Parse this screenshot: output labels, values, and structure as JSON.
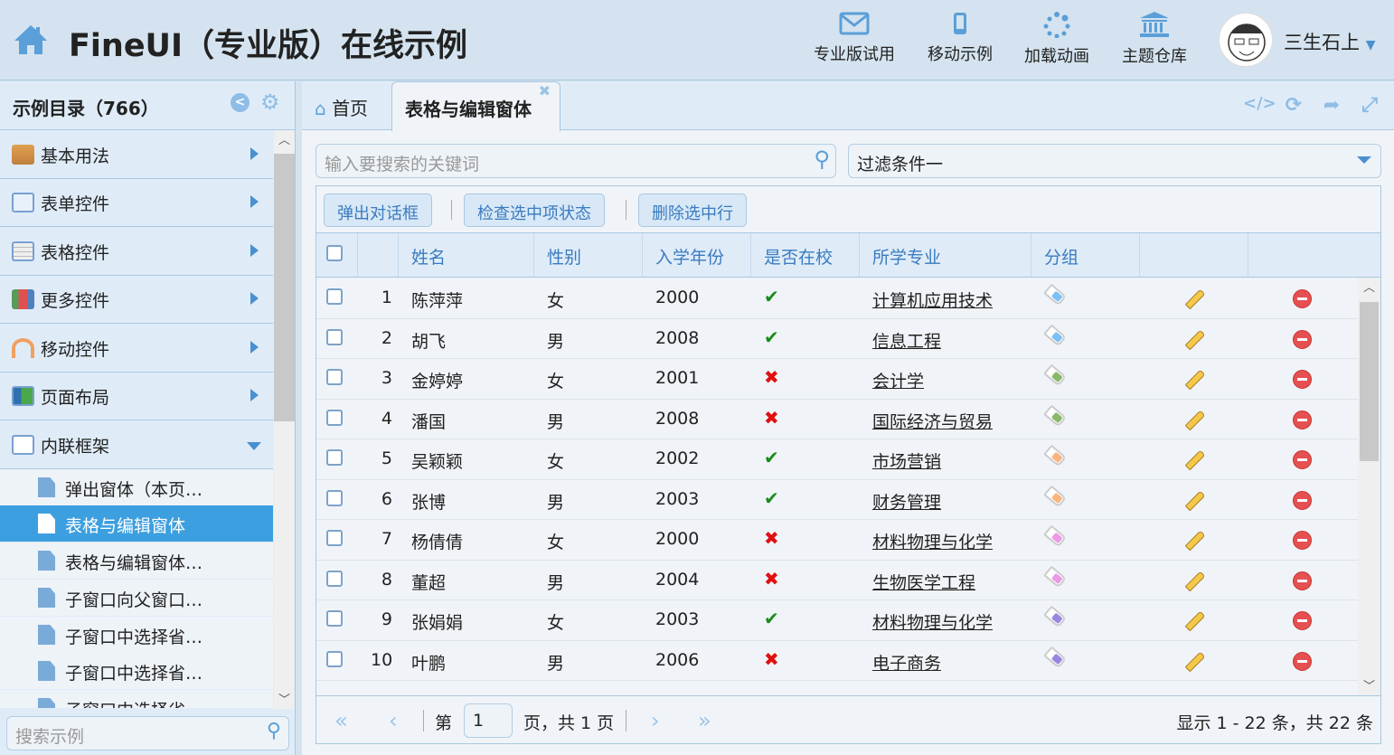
{
  "header": {
    "title": "FineUI（专业版）在线示例",
    "buttons": [
      {
        "label": "专业版试用",
        "icon": "envelope-icon"
      },
      {
        "label": "移动示例",
        "icon": "mobile-icon"
      },
      {
        "label": "加载动画",
        "icon": "spinner-icon"
      },
      {
        "label": "主题仓库",
        "icon": "bank-icon"
      }
    ],
    "user": "三生石上"
  },
  "sidebar": {
    "title": "示例目录（766）",
    "items": [
      {
        "label": "基本用法",
        "icon": "house-icon"
      },
      {
        "label": "表单控件",
        "icon": "form-icon"
      },
      {
        "label": "表格控件",
        "icon": "table-icon"
      },
      {
        "label": "更多控件",
        "icon": "bricks-icon"
      },
      {
        "label": "移动控件",
        "icon": "transmit-icon"
      },
      {
        "label": "页面布局",
        "icon": "layout-icon"
      },
      {
        "label": "内联框架",
        "icon": "windows-icon",
        "expanded": true
      }
    ],
    "subitems": [
      "弹出窗体（本页…",
      "表格与编辑窗体",
      "表格与编辑窗体…",
      "子窗口向父窗口…",
      "子窗口中选择省…",
      "子窗口中选择省…",
      "子窗口中选择省…"
    ],
    "selected": "表格与编辑窗体",
    "search_placeholder": "搜索示例"
  },
  "tabs": [
    {
      "label": "首页"
    },
    {
      "label": "表格与编辑窗体",
      "active": true
    }
  ],
  "search": {
    "placeholder": "输入要搜索的关键词",
    "filter": "过滤条件一"
  },
  "toolbar": {
    "dialog": "弹出对话框",
    "check": "检查选中项状态",
    "delete": "删除选中行"
  },
  "columns": [
    "姓名",
    "性别",
    "入学年份",
    "是否在校",
    "所学专业",
    "分组"
  ],
  "rows": [
    {
      "n": "1",
      "name": "陈萍萍",
      "gender": "女",
      "year": "2000",
      "enrolled": true,
      "major": "计算机应用技术",
      "group": "#7cc0f5"
    },
    {
      "n": "2",
      "name": "胡飞",
      "gender": "男",
      "year": "2008",
      "enrolled": true,
      "major": "信息工程",
      "group": "#7cc0f5"
    },
    {
      "n": "3",
      "name": "金婷婷",
      "gender": "女",
      "year": "2001",
      "enrolled": false,
      "major": "会计学",
      "group": "#8ab86a"
    },
    {
      "n": "4",
      "name": "潘国",
      "gender": "男",
      "year": "2008",
      "enrolled": false,
      "major": "国际经济与贸易",
      "group": "#8ab86a"
    },
    {
      "n": "5",
      "name": "吴颖颖",
      "gender": "女",
      "year": "2002",
      "enrolled": true,
      "major": "市场营销",
      "group": "#f8b57e"
    },
    {
      "n": "6",
      "name": "张博",
      "gender": "男",
      "year": "2003",
      "enrolled": true,
      "major": "财务管理",
      "group": "#f8b57e"
    },
    {
      "n": "7",
      "name": "杨倩倩",
      "gender": "女",
      "year": "2000",
      "enrolled": false,
      "major": "材料物理与化学",
      "group": "#ec9ae6"
    },
    {
      "n": "8",
      "name": "董超",
      "gender": "男",
      "year": "2004",
      "enrolled": false,
      "major": "生物医学工程",
      "group": "#ec9ae6"
    },
    {
      "n": "9",
      "name": "张娟娟",
      "gender": "女",
      "year": "2003",
      "enrolled": true,
      "major": "材料物理与化学",
      "group": "#9a86e0"
    },
    {
      "n": "10",
      "name": "叶鹏",
      "gender": "男",
      "year": "2006",
      "enrolled": false,
      "major": "电子商务",
      "group": "#9a86e0"
    }
  ],
  "pager": {
    "page_prefix": "第",
    "page": "1",
    "page_suffix": "页，共 1 页",
    "summary": "显示 1 - 22 条，共 22 条"
  },
  "colors": {
    "accent": "#3c9fe0",
    "check": "#1a8a1a",
    "cross": "#e01010"
  }
}
